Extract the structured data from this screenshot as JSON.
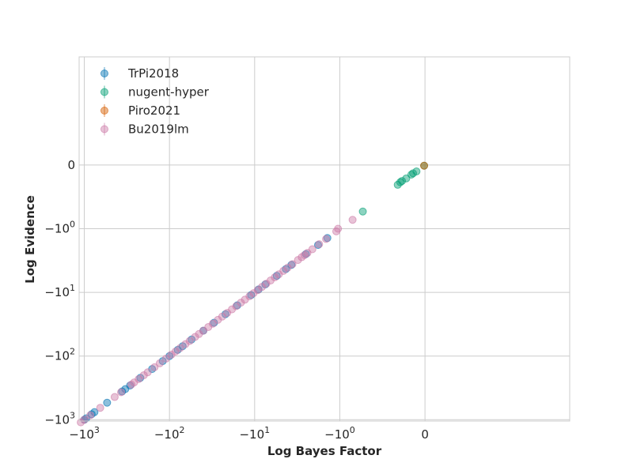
{
  "chart_data": {
    "type": "scatter",
    "title": "",
    "xlabel": "Log Bayes Factor",
    "ylabel": "Log Evidence",
    "scale": "symlog",
    "linthresh": 1,
    "xlim": [
      -1150,
      5
    ],
    "ylim": [
      -1050,
      5
    ],
    "grid": true,
    "legend_position": "top-left",
    "x_ticks": [
      {
        "value": -1000,
        "base": "−10",
        "exp": "3"
      },
      {
        "value": -100,
        "base": "−10",
        "exp": "2"
      },
      {
        "value": -10,
        "base": "−10",
        "exp": "1"
      },
      {
        "value": -1,
        "base": "−10",
        "exp": "0"
      },
      {
        "value": 0,
        "base": "0",
        "exp": ""
      }
    ],
    "y_ticks": [
      {
        "value": 0,
        "base": "0",
        "exp": ""
      },
      {
        "value": -1,
        "base": "−10",
        "exp": "0"
      },
      {
        "value": -10,
        "base": "−10",
        "exp": "1"
      },
      {
        "value": -100,
        "base": "−10",
        "exp": "2"
      },
      {
        "value": -1000,
        "base": "−10",
        "exp": "3"
      }
    ],
    "series": [
      {
        "name": "TrPi2018",
        "color": "#0072b2",
        "points": [
          [
            -1000,
            -1000
          ],
          [
            -950,
            -950
          ],
          [
            -820,
            -820
          ],
          [
            -760,
            -760
          ],
          [
            -540,
            -540
          ],
          [
            -360,
            -360
          ],
          [
            -330,
            -330
          ],
          [
            -290,
            -290
          ],
          [
            -220,
            -220
          ],
          [
            -160,
            -160
          ],
          [
            -120,
            -120
          ],
          [
            -100,
            -100
          ],
          [
            -80,
            -80
          ],
          [
            -70,
            -70
          ],
          [
            -55,
            -55
          ],
          [
            -40,
            -40
          ],
          [
            -30,
            -30
          ],
          [
            -22,
            -22
          ],
          [
            -16,
            -16
          ],
          [
            -11,
            -11
          ],
          [
            -9,
            -9
          ],
          [
            -7.5,
            -7.5
          ],
          [
            -5.5,
            -5.5
          ],
          [
            -4.3,
            -4.3
          ],
          [
            -3.7,
            -3.7
          ],
          [
            -2.5,
            -2.5
          ],
          [
            -1.8,
            -1.8
          ],
          [
            -1.4,
            -1.4
          ]
        ]
      },
      {
        "name": "nugent-hyper",
        "color": "#009e73",
        "points": [
          [
            -0.73,
            -0.73
          ],
          [
            -0.32,
            -0.31
          ],
          [
            -0.29,
            -0.27
          ],
          [
            -0.27,
            -0.25
          ],
          [
            -0.22,
            -0.21
          ],
          [
            -0.16,
            -0.15
          ],
          [
            -0.14,
            -0.13
          ],
          [
            -0.1,
            -0.1
          ],
          [
            -0.01,
            -0.01
          ]
        ]
      },
      {
        "name": "Piro2021",
        "color": "#d55e00",
        "points": [
          [
            -0.01,
            -0.01
          ]
        ]
      },
      {
        "name": "Bu2019lm",
        "color": "#cc79a7",
        "points": [
          [
            -1100,
            -1100
          ],
          [
            -1000,
            -1000
          ],
          [
            -850,
            -850
          ],
          [
            -650,
            -650
          ],
          [
            -440,
            -440
          ],
          [
            -370,
            -370
          ],
          [
            -280,
            -280
          ],
          [
            -260,
            -260
          ],
          [
            -230,
            -230
          ],
          [
            -200,
            -200
          ],
          [
            -180,
            -180
          ],
          [
            -150,
            -150
          ],
          [
            -130,
            -130
          ],
          [
            -110,
            -110
          ],
          [
            -95,
            -95
          ],
          [
            -85,
            -85
          ],
          [
            -75,
            -75
          ],
          [
            -65,
            -65
          ],
          [
            -58,
            -58
          ],
          [
            -50,
            -50
          ],
          [
            -45,
            -45
          ],
          [
            -40,
            -40
          ],
          [
            -35,
            -35
          ],
          [
            -31,
            -31
          ],
          [
            -27,
            -27
          ],
          [
            -24,
            -24
          ],
          [
            -21,
            -21
          ],
          [
            -18.5,
            -18.5
          ],
          [
            -16.5,
            -16.5
          ],
          [
            -14.5,
            -14.5
          ],
          [
            -13,
            -13
          ],
          [
            -11.5,
            -11.5
          ],
          [
            -10.3,
            -10.3
          ],
          [
            -9.2,
            -9.2
          ],
          [
            -8.2,
            -8.2
          ],
          [
            -7.3,
            -7.3
          ],
          [
            -6.5,
            -6.5
          ],
          [
            -5.8,
            -5.8
          ],
          [
            -5.2,
            -5.2
          ],
          [
            -4.6,
            -4.6
          ],
          [
            -4.1,
            -4.1
          ],
          [
            -3.6,
            -3.6
          ],
          [
            -3.1,
            -3.1
          ],
          [
            -2.8,
            -2.8
          ],
          [
            -2.6,
            -2.6
          ],
          [
            -2.4,
            -2.4
          ],
          [
            -2.1,
            -2.1
          ],
          [
            -1.75,
            -1.75
          ],
          [
            -1.45,
            -1.45
          ],
          [
            -1.1,
            -1.1
          ],
          [
            -1.05,
            -1.0
          ],
          [
            -0.85,
            -0.86
          ]
        ]
      }
    ]
  }
}
